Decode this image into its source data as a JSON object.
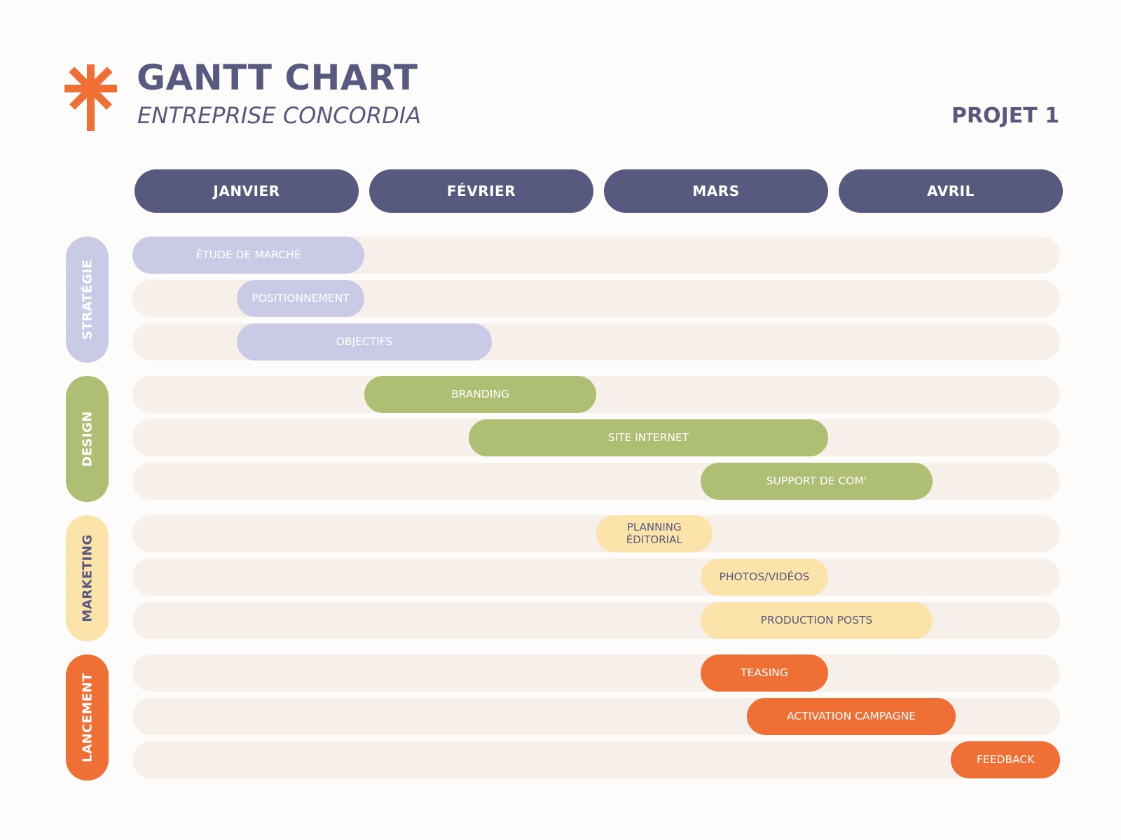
{
  "header": {
    "title": "GANTT CHART",
    "subtitle": "ENTREPRISE CONCORDIA",
    "project": "PROJET 1",
    "logo_icon": "asterisk-cross-logo-icon",
    "title_color": "#575a7e",
    "logo_color": "#ef6f35"
  },
  "chart_data": {
    "type": "gantt",
    "months": [
      "JANVIER",
      "FÉVRIER",
      "MARS",
      "AVRIL"
    ],
    "groups": [
      {
        "name": "STRATÉGIE",
        "color": "#c9cae6",
        "text_color": "#ffffff",
        "tasks": [
          {
            "name": "ÉTUDE DE MARCHÉ",
            "start": 0.0,
            "end": 1.0
          },
          {
            "name": "POSITIONNEMENT",
            "start": 0.45,
            "end": 1.0
          },
          {
            "name": "OBJECTIFS",
            "start": 0.45,
            "end": 1.55
          }
        ]
      },
      {
        "name": "DESIGN",
        "color": "#aebe73",
        "text_color": "#ffffff",
        "tasks": [
          {
            "name": "BRANDING",
            "start": 1.0,
            "end": 2.0
          },
          {
            "name": "SITE INTERNET",
            "start": 1.45,
            "end": 3.0
          },
          {
            "name": "SUPPORT DE COM'",
            "start": 2.45,
            "end": 3.45
          }
        ]
      },
      {
        "name": "MARKETING",
        "color": "#fce3aa",
        "text_color": "#575a7e",
        "tasks": [
          {
            "name": "PLANNING ÉDITORIAL",
            "start": 2.0,
            "end": 2.5
          },
          {
            "name": "PHOTOS/VIDÉOS",
            "start": 2.45,
            "end": 3.0
          },
          {
            "name": "PRODUCTION POSTS",
            "start": 2.45,
            "end": 3.45
          }
        ]
      },
      {
        "name": "LANCEMENT",
        "color": "#ef6f35",
        "text_color": "#ffffff",
        "tasks": [
          {
            "name": "TEASING",
            "start": 2.45,
            "end": 3.0
          },
          {
            "name": "ACTIVATION CAMPAGNE",
            "start": 2.65,
            "end": 3.55
          },
          {
            "name": "FEEDBACK",
            "start": 3.53,
            "end": 4.0
          }
        ]
      }
    ]
  }
}
